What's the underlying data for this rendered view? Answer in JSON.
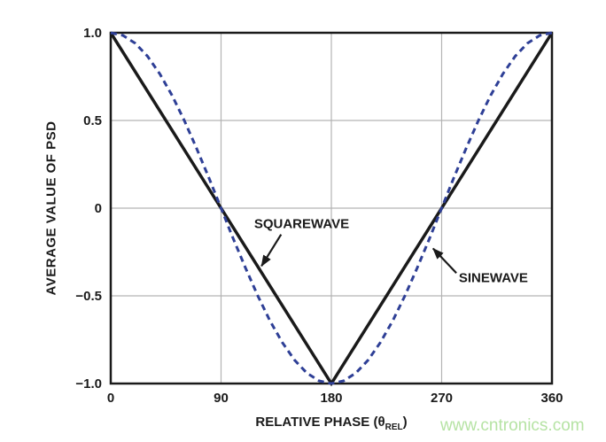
{
  "watermark": {
    "text": "www.cntronics.com",
    "color": "#b6e3a4"
  },
  "chart_data": {
    "type": "line",
    "title": "",
    "xlabel": {
      "prefix": "RELATIVE PHASE (θ",
      "sub": "REL",
      "suffix": ")"
    },
    "ylabel": "AVERAGE VALUE OF PSD",
    "xlim": [
      0,
      360
    ],
    "ylim": [
      -1,
      1
    ],
    "grid": true,
    "legend_position": "none",
    "colors": {
      "axis": "#1a1a1a",
      "grid": "#b3b3b3",
      "background": "#ffffff"
    },
    "x_ticks": [
      {
        "value": 0,
        "label": "0"
      },
      {
        "value": 90,
        "label": "90"
      },
      {
        "value": 180,
        "label": "180"
      },
      {
        "value": 270,
        "label": "270"
      },
      {
        "value": 360,
        "label": "360"
      }
    ],
    "y_ticks": [
      {
        "value": 1,
        "label": "1.0"
      },
      {
        "value": 0.5,
        "label": "0.5"
      },
      {
        "value": 0,
        "label": "0"
      },
      {
        "value": -0.5,
        "label": "−0.5"
      },
      {
        "value": -1,
        "label": "−1.0"
      }
    ],
    "series": [
      {
        "name": "SQUAREWAVE",
        "style": "solid",
        "color": "#1a1a1a",
        "width": 3.5,
        "points": [
          [
            0,
            1
          ],
          [
            180,
            -1
          ],
          [
            360,
            1
          ]
        ]
      },
      {
        "name": "SINEWAVE",
        "style": "dashed",
        "color": "#2e3f96",
        "width": 3,
        "points": [
          [
            0,
            1
          ],
          [
            10,
            0.985
          ],
          [
            20,
            0.94
          ],
          [
            30,
            0.866
          ],
          [
            40,
            0.766
          ],
          [
            50,
            0.643
          ],
          [
            60,
            0.5
          ],
          [
            70,
            0.342
          ],
          [
            80,
            0.174
          ],
          [
            90,
            0
          ],
          [
            100,
            -0.174
          ],
          [
            110,
            -0.342
          ],
          [
            120,
            -0.5
          ],
          [
            130,
            -0.643
          ],
          [
            140,
            -0.766
          ],
          [
            150,
            -0.866
          ],
          [
            160,
            -0.94
          ],
          [
            170,
            -0.985
          ],
          [
            180,
            -1
          ],
          [
            190,
            -0.985
          ],
          [
            200,
            -0.94
          ],
          [
            210,
            -0.866
          ],
          [
            220,
            -0.766
          ],
          [
            230,
            -0.643
          ],
          [
            240,
            -0.5
          ],
          [
            250,
            -0.342
          ],
          [
            260,
            -0.174
          ],
          [
            270,
            0
          ],
          [
            280,
            0.174
          ],
          [
            290,
            0.342
          ],
          [
            300,
            0.5
          ],
          [
            310,
            0.643
          ],
          [
            320,
            0.766
          ],
          [
            330,
            0.866
          ],
          [
            340,
            0.94
          ],
          [
            350,
            0.985
          ],
          [
            360,
            1
          ]
        ]
      }
    ],
    "annotations": [
      {
        "text": "SQUAREWAVE",
        "target_series": "SQUAREWAVE",
        "text_x": 117,
        "text_y": -0.09,
        "arrow_from_x": 139,
        "arrow_from_y": -0.15,
        "arrow_to_x": 123,
        "arrow_to_y": -0.33
      },
      {
        "text": "SINEWAVE",
        "target_series": "SINEWAVE",
        "text_x": 284,
        "text_y": -0.4,
        "arrow_from_x": 282,
        "arrow_from_y": -0.37,
        "arrow_to_x": 263,
        "arrow_to_y": -0.23
      }
    ]
  }
}
